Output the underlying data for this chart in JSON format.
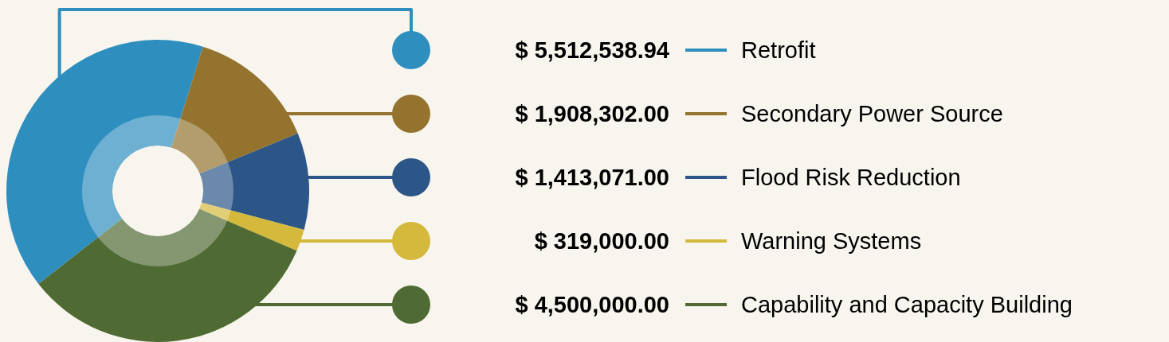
{
  "chart_data": {
    "type": "donut",
    "legend": "right",
    "categories": [
      "Retrofit",
      "Secondary Power Source",
      "Flood Risk Reduction",
      "Warning Systems",
      "Capability and Capacity Building"
    ],
    "values": [
      5512538.94,
      1908302,
      1413071,
      319000,
      4500000
    ],
    "colors": [
      "#2e8fbf",
      "#94732e",
      "#2c5687",
      "#d4b93c",
      "#4f6b33"
    ],
    "value_labels": [
      "$ 5,512,538.94",
      "$ 1,908,302.00",
      "$ 1,413,071.00",
      "$ 319,000.00",
      "$ 4,500,000.00"
    ]
  }
}
